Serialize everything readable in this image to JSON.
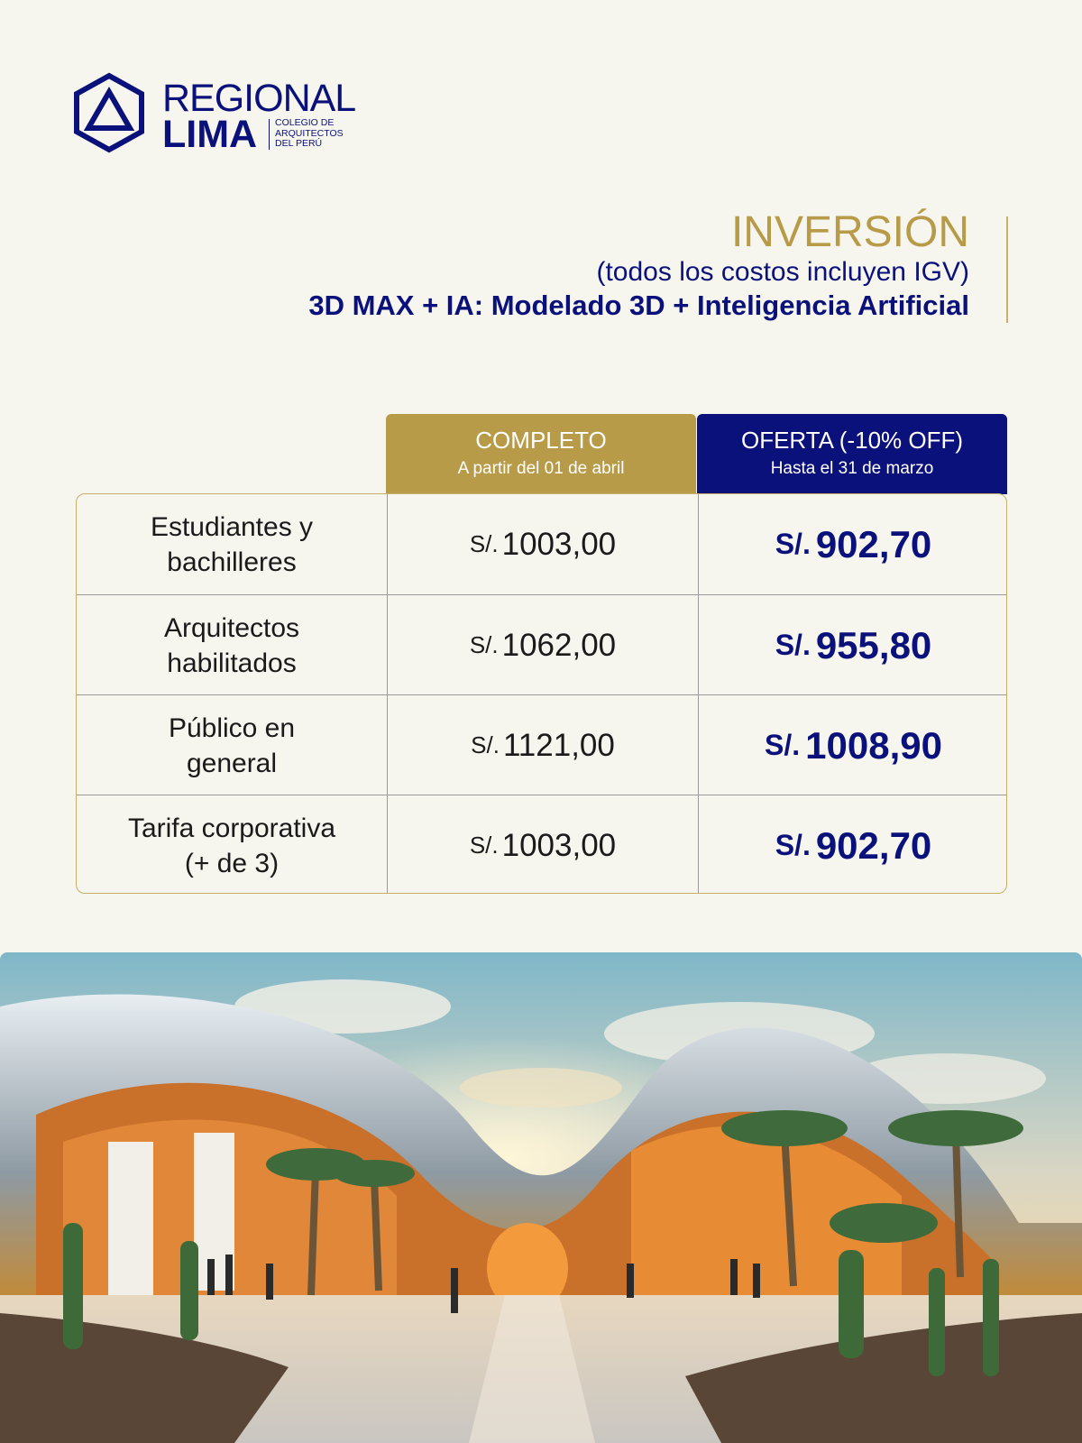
{
  "logo": {
    "line1": "REGIONAL",
    "line2": "LIMA",
    "subtitle_lines": [
      "COLEGIO DE",
      "ARQUITECTOS",
      "DEL PERÚ"
    ]
  },
  "header": {
    "title": "INVERSIÓN",
    "note": "(todos los costos incluyen IGV)",
    "course": "3D MAX + IA: Modelado 3D + Inteligencia Artificial"
  },
  "table": {
    "columns": [
      {
        "title": "COMPLETO",
        "subtitle": "A partir del 01 de abril"
      },
      {
        "title": "OFERTA (-10% OFF)",
        "subtitle": "Hasta el 31 de marzo"
      }
    ],
    "currency": "S/.",
    "rows": [
      {
        "label_lines": [
          "Estudiantes y",
          "bachilleres"
        ],
        "full": "1003,00",
        "offer": "902,70"
      },
      {
        "label_lines": [
          "Arquitectos",
          "habilitados"
        ],
        "full": "1062,00",
        "offer": "955,80"
      },
      {
        "label_lines": [
          "Público en",
          "general"
        ],
        "full": "1121,00",
        "offer": "1008,90"
      },
      {
        "label_lines": [
          "Tarifa corporativa",
          "(+ de 3)"
        ],
        "full": "1003,00",
        "offer": "902,70"
      }
    ]
  },
  "colors": {
    "navy": "#0b117a",
    "gold": "#b89b49",
    "background": "#f6f5ee"
  },
  "photo": {
    "icons": [
      "architecture-render-image"
    ]
  }
}
